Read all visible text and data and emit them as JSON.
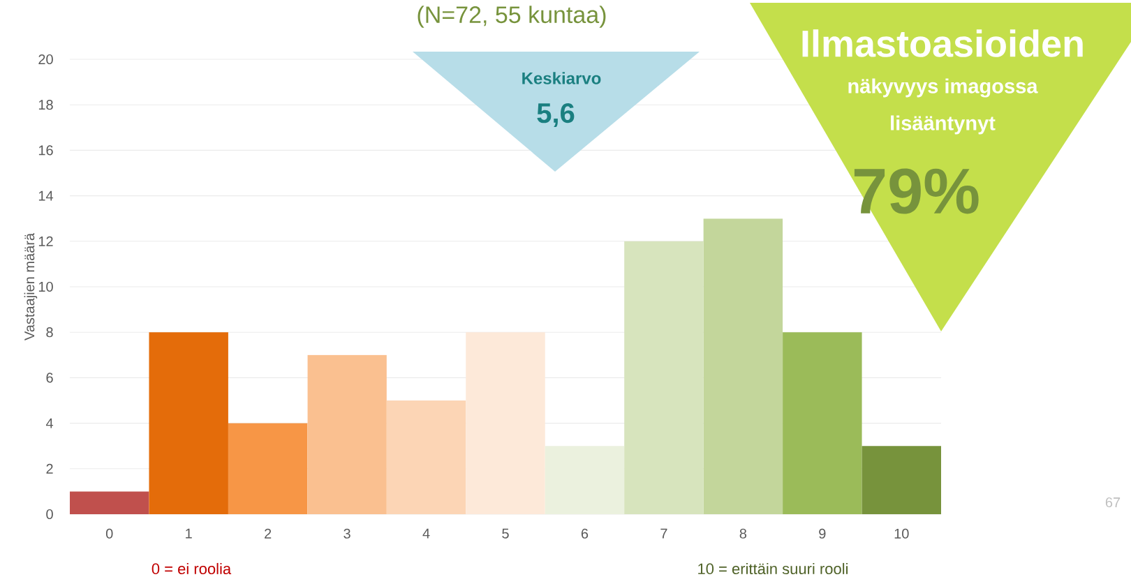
{
  "chart_data": {
    "type": "bar",
    "title": "(N=72, 55 kuntaa)",
    "ylabel": "Vastaajien määrä",
    "categories": [
      "0",
      "1",
      "2",
      "3",
      "4",
      "5",
      "6",
      "7",
      "8",
      "9",
      "10"
    ],
    "values": [
      1,
      8,
      4,
      7,
      5,
      8,
      3,
      12,
      13,
      8,
      3
    ],
    "colors": [
      "#c0504d",
      "#e46c0a",
      "#f79646",
      "#fac090",
      "#fcd5b5",
      "#fde9d9",
      "#ebf1de",
      "#d7e4bd",
      "#c3d69b",
      "#9bbb59",
      "#77933c"
    ],
    "ylim": [
      0,
      20
    ],
    "yticks": [
      0,
      2,
      4,
      6,
      8,
      10,
      12,
      14,
      16,
      18,
      20
    ],
    "grid": "y",
    "annotations": [
      "Keskiarvo",
      "5,6",
      "Ilmastoasioiden",
      "näkyvyys imagossa",
      "lisääntynyt",
      "79%",
      "0 = ei roolia",
      "10 = erittäin suuri rooli",
      "67"
    ]
  }
}
